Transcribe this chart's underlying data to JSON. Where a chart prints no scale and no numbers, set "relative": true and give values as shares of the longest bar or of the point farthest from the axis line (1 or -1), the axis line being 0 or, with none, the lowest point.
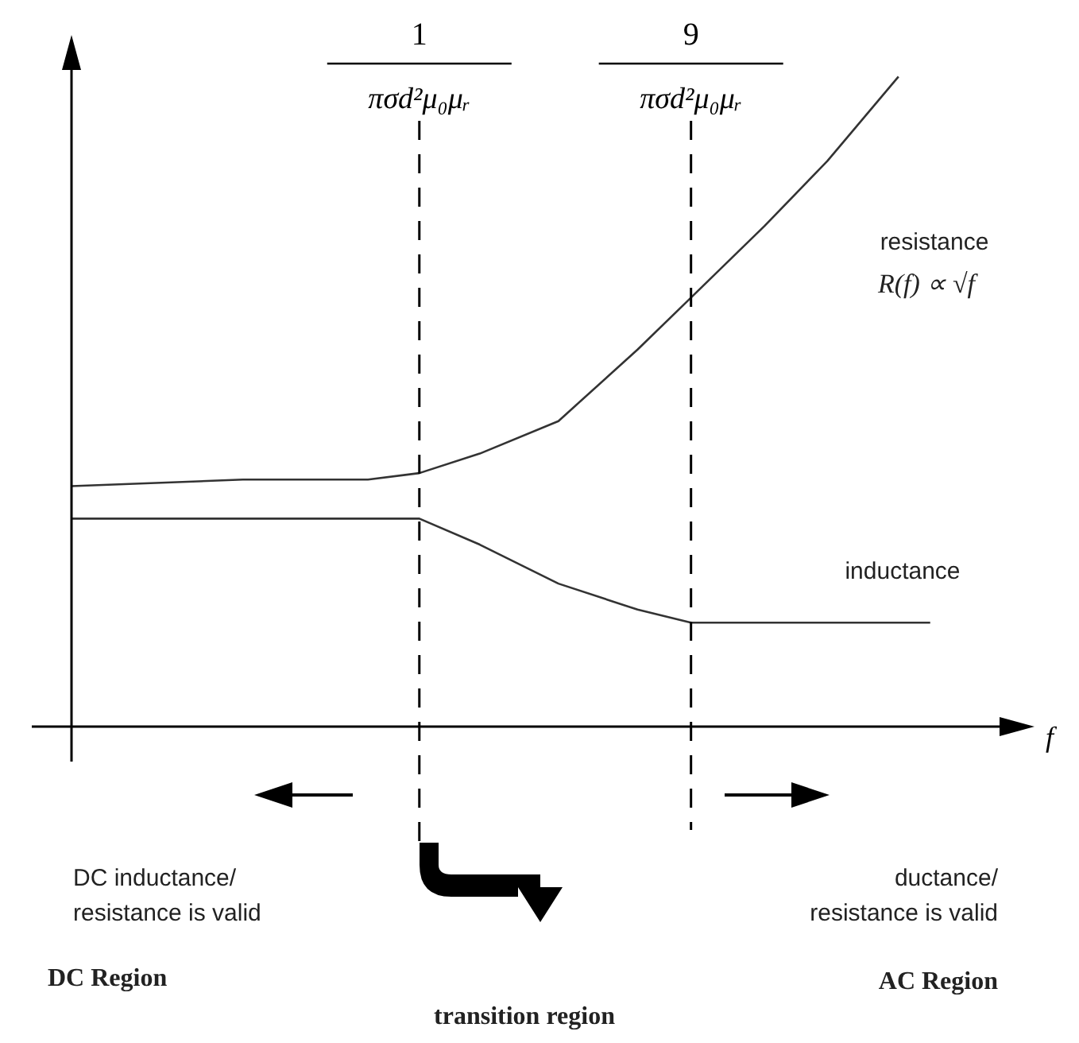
{
  "chart_data": {
    "type": "line",
    "relative": true,
    "log": "x",
    "xlabel": "f",
    "xlim": [
      0.06,
      112
    ],
    "xticks": [
      1,
      9
    ],
    "legend": false,
    "marker": "none",
    "line_style": "solid",
    "series": [
      {
        "color": "#333333",
        "x": [
          0.06,
          0.24,
          0.66,
          1,
          1.63,
          3.08,
          5.84,
          9,
          16.3,
          27.1,
          48.2
        ],
        "values": [
          0.37,
          0.38,
          0.38,
          0.39,
          0.42,
          0.47,
          0.58,
          0.66,
          0.77,
          0.87,
          1
        ]
      },
      {
        "color": "#333333",
        "x": [
          0.06,
          1,
          1.63,
          3.08,
          5.84,
          9,
          21,
          62.3
        ],
        "values": [
          0.32,
          0.32,
          0.28,
          0.22,
          0.18,
          0.16,
          0.16,
          0.16
        ]
      }
    ],
    "ref_lines": [
      {
        "axis": "x",
        "value": 1,
        "label": "πσd²μ₀μᵣ",
        "line_style": "dashed"
      },
      {
        "axis": "x",
        "value": 9,
        "label": "πσd²μ₀μᵣ",
        "line_style": "dashed"
      }
    ],
    "annotations": [
      "resistance",
      "R(f) ∝ √f",
      "inductance",
      "DC inductance/\nresistance is valid",
      "DC Region",
      "transition region",
      "ductance/\nresistance is valid",
      "AC Region"
    ]
  }
}
